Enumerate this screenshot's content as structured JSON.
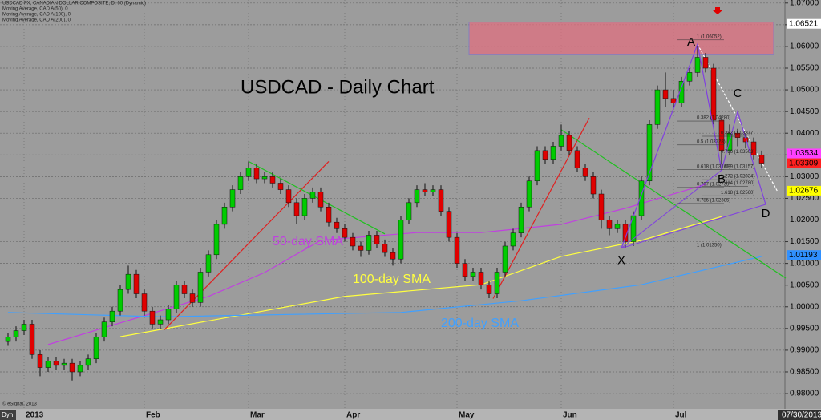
{
  "chart_data": {
    "type": "candlestick",
    "title": "USDCAD - Daily Chart",
    "header_lines": [
      "USDCAD FX, CANADIAN DOLLAR COMPOSITE, D, 60 (Dynamic)",
      "Moving Average, CAD A(50), 0",
      "Moving Average, CAD A(100), 0",
      "Moving Average, CAD A(200), 0"
    ],
    "footer_left": "© eSignal, 2013",
    "corner_label": "Dyn",
    "date_label": "07/30/2013",
    "categories": [
      null,
      null,
      "2013",
      null,
      null,
      null,
      null,
      null,
      null,
      null,
      null,
      null,
      null,
      null,
      null,
      null,
      null,
      "Feb",
      null,
      null,
      null,
      null,
      null,
      null,
      null,
      null,
      null,
      null,
      null,
      null,
      "Mar",
      null,
      null,
      null,
      null,
      null,
      null,
      null,
      null,
      null,
      null,
      null,
      "Apr",
      null,
      null,
      null,
      null,
      null,
      null,
      null,
      null,
      null,
      null,
      null,
      null,
      null,
      "May",
      null,
      null,
      null,
      null,
      null,
      null,
      null,
      null,
      null,
      null,
      null,
      null,
      "Jun",
      null,
      null,
      null,
      null,
      null,
      null,
      null,
      null,
      null,
      null,
      null,
      null,
      null,
      "Jul",
      null,
      null,
      null,
      null,
      null,
      null,
      null,
      null,
      null,
      null,
      null
    ],
    "open": [
      0.992,
      0.993,
      0.9945,
      0.996,
      0.989,
      0.986,
      0.9875,
      0.9865,
      0.987,
      0.985,
      0.9865,
      0.988,
      0.993,
      0.9965,
      0.999,
      1.004,
      1.0075,
      1.003,
      0.999,
      0.996,
      0.997,
      0.9995,
      1.005,
      1.003,
      1.001,
      1.008,
      1.012,
      1.019,
      1.023,
      1.027,
      1.03,
      1.032,
      1.0295,
      1.03,
      1.0285,
      1.027,
      1.024,
      1.021,
      1.025,
      1.0265,
      1.023,
      1.0195,
      1.018,
      1.016,
      1.014,
      1.013,
      1.0165,
      1.0145,
      1.0125,
      1.011,
      1.02,
      1.024,
      1.027,
      1.0265,
      1.027,
      1.022,
      1.016,
      1.01,
      1.007,
      1.008,
      1.005,
      1.003,
      1.008,
      1.014,
      1.017,
      1.023,
      1.029,
      1.036,
      1.034,
      1.037,
      1.0395,
      1.036,
      1.032,
      1.03,
      1.026,
      1.02,
      1.018,
      1.019,
      1.015,
      1.021,
      1.029,
      1.042,
      1.05,
      1.048,
      1.047,
      1.052,
      1.054,
      1.0575,
      1.055,
      1.043,
      1.036,
      1.04,
      1.039,
      1.038,
      1.035
    ],
    "high": [
      0.994,
      0.9955,
      0.997,
      0.997,
      0.99,
      0.9885,
      0.9885,
      0.988,
      0.988,
      0.9875,
      0.989,
      0.994,
      0.9975,
      1.0,
      1.005,
      1.0095,
      1.0085,
      1.004,
      1.0,
      0.998,
      1.0005,
      1.006,
      1.006,
      1.004,
      1.009,
      1.013,
      1.02,
      1.024,
      1.028,
      1.031,
      1.0335,
      1.033,
      1.031,
      1.031,
      1.0295,
      1.028,
      1.025,
      1.026,
      1.0275,
      1.0275,
      1.024,
      1.0205,
      1.019,
      1.017,
      1.015,
      1.0175,
      1.0175,
      1.0155,
      1.0135,
      1.021,
      1.025,
      1.028,
      1.0285,
      1.028,
      1.028,
      1.023,
      1.017,
      1.011,
      1.009,
      1.009,
      1.006,
      1.009,
      1.015,
      1.018,
      1.024,
      1.03,
      1.037,
      1.037,
      1.038,
      1.042,
      1.0405,
      1.037,
      1.033,
      1.031,
      1.027,
      1.021,
      1.02,
      1.02,
      1.022,
      1.03,
      1.043,
      1.051,
      1.054,
      1.05,
      1.053,
      1.055,
      1.06,
      1.0585,
      1.056,
      1.044,
      1.042,
      1.041,
      1.04,
      1.039,
      1.036
    ],
    "low": [
      0.991,
      0.992,
      0.9935,
      0.988,
      0.984,
      0.985,
      0.9855,
      0.9855,
      0.983,
      0.984,
      0.9855,
      0.987,
      0.992,
      0.9955,
      0.998,
      1.003,
      1.002,
      0.998,
      0.995,
      0.995,
      0.996,
      0.9985,
      1.002,
      1.0,
      1.0,
      1.007,
      1.011,
      1.018,
      1.022,
      1.026,
      1.029,
      1.0285,
      1.0285,
      1.0275,
      1.026,
      1.023,
      1.019,
      1.02,
      1.024,
      1.022,
      1.0185,
      1.017,
      1.015,
      1.013,
      1.0115,
      1.012,
      1.0135,
      1.0115,
      1.0095,
      1.01,
      1.019,
      1.023,
      1.0255,
      1.0255,
      1.021,
      1.015,
      1.009,
      1.006,
      1.006,
      1.004,
      1.002,
      1.002,
      1.007,
      1.013,
      1.016,
      1.022,
      1.028,
      1.033,
      1.033,
      1.036,
      1.035,
      1.031,
      1.029,
      1.025,
      1.018,
      1.0165,
      1.017,
      1.0135,
      1.014,
      1.02,
      1.028,
      1.041,
      1.046,
      1.0455,
      1.046,
      1.051,
      1.053,
      1.054,
      1.042,
      1.033,
      1.035,
      1.037,
      1.0365,
      1.034,
      1.032
    ],
    "close": [
      0.993,
      0.9945,
      0.996,
      0.989,
      0.986,
      0.9875,
      0.9865,
      0.987,
      0.985,
      0.9865,
      0.988,
      0.993,
      0.9965,
      0.999,
      1.004,
      1.0075,
      1.003,
      0.999,
      0.996,
      0.997,
      0.9995,
      1.005,
      1.003,
      1.001,
      1.008,
      1.012,
      1.019,
      1.023,
      1.027,
      1.03,
      1.032,
      1.0295,
      1.03,
      1.0285,
      1.027,
      1.024,
      1.021,
      1.025,
      1.0265,
      1.023,
      1.0195,
      1.018,
      1.016,
      1.014,
      1.013,
      1.0165,
      1.0145,
      1.0125,
      1.011,
      1.02,
      1.024,
      1.027,
      1.0265,
      1.027,
      1.022,
      1.016,
      1.01,
      1.007,
      1.008,
      1.005,
      1.003,
      1.008,
      1.014,
      1.017,
      1.023,
      1.029,
      1.036,
      1.034,
      1.037,
      1.0395,
      1.036,
      1.032,
      1.03,
      1.026,
      1.02,
      1.018,
      1.019,
      1.015,
      1.021,
      1.029,
      1.042,
      1.05,
      1.048,
      1.047,
      1.052,
      1.054,
      1.0575,
      1.055,
      1.043,
      1.036,
      1.04,
      1.039,
      1.038,
      1.035,
      1.0331
    ],
    "up_color": "#00cc00",
    "down_color": "#e00000",
    "ylim": [
      0.9765,
      1.0707
    ],
    "yticks": [
      {
        "value": 1.07,
        "label": "1.07000"
      },
      {
        "value": 1.065,
        "label": "1.06500"
      },
      {
        "value": 1.06,
        "label": "1.06000"
      },
      {
        "value": 1.055,
        "label": "1.05500"
      },
      {
        "value": 1.05,
        "label": "1.05000"
      },
      {
        "value": 1.045,
        "label": "1.04500"
      },
      {
        "value": 1.04,
        "label": "1.04000"
      },
      {
        "value": 1.035,
        "label": "1.03500"
      },
      {
        "value": 1.03,
        "label": "1.03000"
      },
      {
        "value": 1.025,
        "label": "1.02500"
      },
      {
        "value": 1.02,
        "label": "1.02000"
      },
      {
        "value": 1.015,
        "label": "1.01500"
      },
      {
        "value": 1.01,
        "label": "1.01000"
      },
      {
        "value": 1.005,
        "label": "1.00500"
      },
      {
        "value": 1.0,
        "label": "1.00000"
      },
      {
        "value": 0.995,
        "label": "0.99500"
      },
      {
        "value": 0.99,
        "label": "0.99000"
      },
      {
        "value": 0.985,
        "label": "0.98500"
      },
      {
        "value": 0.98,
        "label": "0.98000"
      }
    ],
    "grid": true,
    "price_tags": [
      {
        "value": 1.06521,
        "color": "#ffffff"
      },
      {
        "value": 1.03534,
        "color": "#ff40ff"
      },
      {
        "value": 1.03309,
        "color": "#ff2020"
      },
      {
        "value": 1.02676,
        "color": "#ffff00"
      },
      {
        "value": 1.01193,
        "color": "#3090ff"
      }
    ],
    "overlays": [
      {
        "name": "50-day SMA",
        "color": "#c040e0",
        "label_x": 33,
        "label_y": 1.015,
        "x": [
          5,
          25,
          32,
          39,
          51,
          59,
          69,
          77,
          87
        ],
        "values": [
          0.9913,
          1.0024,
          1.0079,
          1.0153,
          1.0171,
          1.0171,
          1.019,
          1.0227,
          1.0282
        ]
      },
      {
        "name": "100-day SMA",
        "color": "#ffff40",
        "label_x": 43,
        "label_y": 1.0063,
        "x": [
          14,
          42,
          59,
          69,
          79,
          89
        ],
        "values": [
          0.9931,
          1.0024,
          1.0051,
          1.0116,
          1.0153,
          1.0208
        ]
      },
      {
        "name": "200-day SMA",
        "color": "#40a0ff",
        "label_x": 54,
        "label_y": 0.9961,
        "x": [
          0,
          19,
          49,
          64,
          79,
          94
        ],
        "values": [
          0.9987,
          0.9977,
          0.9987,
          1.0014,
          1.0051,
          1.0116
        ]
      }
    ],
    "trendlines": [
      {
        "color": "#e02020",
        "x": [
          19.5,
          40
        ],
        "values": [
          0.9947,
          1.0335
        ]
      },
      {
        "color": "#e02020",
        "x": [
          60.5,
          72.5
        ],
        "values": [
          1.0019,
          1.0435
        ]
      },
      {
        "color": "#20c020",
        "x": [
          30,
          47
        ],
        "values": [
          1.0335,
          1.0168
        ]
      },
      {
        "color": "#20c020",
        "x": [
          69,
          97
        ],
        "values": [
          1.0408,
          1.0066
        ]
      },
      {
        "color": "#ffffff",
        "x": [
          86,
          96
        ],
        "values": [
          1.0605,
          1.0265
        ]
      }
    ],
    "zone": {
      "x": [
        57.5,
        95.5
      ],
      "values": [
        1.0582,
        1.0656
      ],
      "color": "#e07080"
    },
    "pattern": {
      "color": "#8040e0",
      "labels": [
        "X",
        "A",
        "B",
        "C",
        "D"
      ],
      "x": [
        76.5,
        86,
        89,
        91,
        94.5
      ],
      "values": [
        1.0135,
        1.0605,
        1.0315,
        1.045,
        1.0236
      ]
    },
    "fib_labels": [
      {
        "text": "1 (1.06052)",
        "x": 86.5,
        "y": 1.0615
      },
      {
        "text": "0.382 (1.04280)",
        "x": 86.5,
        "y": 1.0428
      },
      {
        "text": "0.5 (1.03728)",
        "x": 86.5,
        "y": 1.0373
      },
      {
        "text": "0.618 (1.03161)",
        "x": 86.5,
        "y": 1.0316
      },
      {
        "text": "0.707 (1.02733)",
        "x": 86.5,
        "y": 1.0275
      },
      {
        "text": "0.786 (1.02385)",
        "x": 86.5,
        "y": 1.0238
      },
      {
        "text": "1 (1.01350)",
        "x": 86.5,
        "y": 1.0135
      },
      {
        "text": "0.382 (1.03877)",
        "x": 89.5,
        "y": 1.0393
      },
      {
        "text": "0.786 (1.03503)",
        "x": 89.5,
        "y": 1.035
      },
      {
        "text": "1.089 (1.03157)",
        "x": 89.5,
        "y": 1.0316
      },
      {
        "text": "1.272 (1.02934)",
        "x": 89.5,
        "y": 1.0293
      },
      {
        "text": "1.414 (1.02780)",
        "x": 89.5,
        "y": 1.0278
      },
      {
        "text": "1.618 (1.02560)",
        "x": 89.5,
        "y": 1.0256
      }
    ]
  }
}
